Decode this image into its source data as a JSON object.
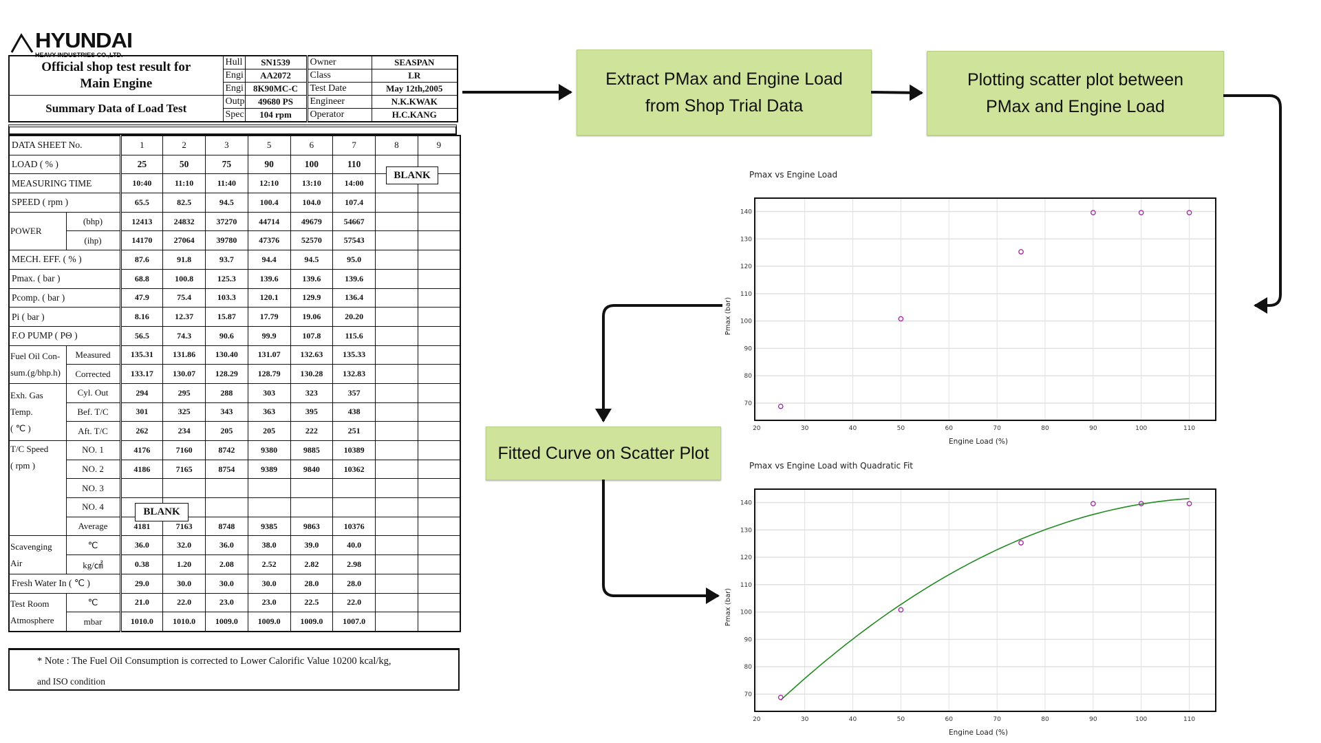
{
  "logo": {
    "brand": "HYUNDAI",
    "sub": "HEAVY INDUSTRIES CO.,LTD."
  },
  "header": {
    "title_line1": "Official shop test result for",
    "title_line2": "Main Engine",
    "subtitle": "Summary Data of Load Test",
    "info": [
      [
        "Hull",
        "SN1539",
        "Owner",
        "SEASPAN"
      ],
      [
        "Engi",
        "AA2072",
        "Class",
        "LR"
      ],
      [
        "Engi",
        "8K90MC-C",
        "Test Date",
        "May 12th,2005"
      ],
      [
        "Outp",
        "49680 PS",
        "Engineer",
        "N.K.KWAK"
      ],
      [
        "Spec",
        "104 rpm",
        "Operator",
        "H.C.KANG"
      ]
    ]
  },
  "table": {
    "sheet_label": "DATA  SHEET No.",
    "sheet_nos": [
      "1",
      "2",
      "3",
      "5",
      "6",
      "7",
      "8",
      "9"
    ],
    "blank": "BLANK",
    "rows": [
      {
        "label": "LOAD ( % )",
        "values": [
          "25",
          "50",
          "75",
          "90",
          "100",
          "110"
        ]
      },
      {
        "label": "MEASURING TIME",
        "values": [
          "10:40",
          "11:10",
          "11:40",
          "12:10",
          "13:10",
          "14:00"
        ]
      },
      {
        "label": "SPEED ( rpm )",
        "values": [
          "65.5",
          "82.5",
          "94.5",
          "100.4",
          "104.0",
          "107.4"
        ]
      },
      {
        "group": "POWER",
        "span": 2,
        "sub": "(bhp)",
        "values": [
          "12413",
          "24832",
          "37270",
          "44714",
          "49679",
          "54667"
        ]
      },
      {
        "sub": "(ihp)",
        "values": [
          "14170",
          "27064",
          "39780",
          "47376",
          "52570",
          "57543"
        ]
      },
      {
        "label": "MECH. EFF. ( % )",
        "values": [
          "87.6",
          "91.8",
          "93.7",
          "94.4",
          "94.5",
          "95.0"
        ]
      },
      {
        "label": "Pmax. ( bar )",
        "values": [
          "68.8",
          "100.8",
          "125.3",
          "139.6",
          "139.6",
          "139.6"
        ]
      },
      {
        "label": "Pcomp. ( bar )",
        "values": [
          "47.9",
          "75.4",
          "103.3",
          "120.1",
          "129.9",
          "136.4"
        ]
      },
      {
        "label": "Pi ( bar )",
        "values": [
          "8.16",
          "12.37",
          "15.87",
          "17.79",
          "19.06",
          "20.20"
        ]
      },
      {
        "label": "F.O PUMP ( PΘ )",
        "values": [
          "56.5",
          "74.3",
          "90.6",
          "99.9",
          "107.8",
          "115.6"
        ]
      },
      {
        "group": "Fuel Oil Con-\nsum.(g/bhp.h)",
        "span": 2,
        "sub": "Measured",
        "values": [
          "135.31",
          "131.86",
          "130.40",
          "131.07",
          "132.63",
          "135.33"
        ]
      },
      {
        "sub": "Corrected",
        "values": [
          "133.17",
          "130.07",
          "128.29",
          "128.79",
          "130.28",
          "132.83"
        ]
      },
      {
        "group": "Exh. Gas\nTemp.\n( ℃ )",
        "span": 3,
        "sub": "Cyl. Out",
        "values": [
          "294",
          "295",
          "288",
          "303",
          "323",
          "357"
        ]
      },
      {
        "sub": "Bef. T/C",
        "values": [
          "301",
          "325",
          "343",
          "363",
          "395",
          "438"
        ]
      },
      {
        "sub": "Aft. T/C",
        "values": [
          "262",
          "234",
          "205",
          "205",
          "222",
          "251"
        ]
      },
      {
        "group": "T/C Speed\n( rpm )",
        "span": 5,
        "sub": "NO. 1",
        "values": [
          "4176",
          "7160",
          "8742",
          "9380",
          "9885",
          "10389"
        ]
      },
      {
        "sub": "NO. 2",
        "values": [
          "4186",
          "7165",
          "8754",
          "9389",
          "9840",
          "10362"
        ]
      },
      {
        "sub": "NO. 3",
        "values": [
          "",
          "",
          "",
          "",
          "",
          ""
        ]
      },
      {
        "sub": "NO. 4",
        "values": [
          "",
          "",
          "",
          "",
          "",
          ""
        ]
      },
      {
        "sub": "Average",
        "values": [
          "4181",
          "7163",
          "8748",
          "9385",
          "9863",
          "10376"
        ]
      },
      {
        "group": "Scavenging\nAir",
        "span": 2,
        "sub": "℃",
        "values": [
          "36.0",
          "32.0",
          "36.0",
          "38.0",
          "39.0",
          "40.0"
        ]
      },
      {
        "sub": "kg/㎠",
        "values": [
          "0.38",
          "1.20",
          "2.08",
          "2.52",
          "2.82",
          "2.98"
        ]
      },
      {
        "label": "Fresh Water In ( ℃ )",
        "values": [
          "29.0",
          "30.0",
          "30.0",
          "30.0",
          "28.0",
          "28.0"
        ]
      },
      {
        "group": "Test Room\nAtmosphere",
        "span": 2,
        "sub": "℃",
        "values": [
          "21.0",
          "22.0",
          "23.0",
          "23.0",
          "22.5",
          "22.0"
        ]
      },
      {
        "sub": "mbar",
        "values": [
          "1010.0",
          "1010.0",
          "1009.0",
          "1009.0",
          "1009.0",
          "1007.0"
        ]
      }
    ],
    "note_line1": "* Note : The Fuel Oil Consumption is corrected to Lower Calorific Value 10200 kcal/kg,",
    "note_line2": "and ISO condition"
  },
  "flow": {
    "step1_line1": "Extract PMax and Engine Load",
    "step1_line2": "from Shop Trial Data",
    "step2_line1": "Plotting scatter plot between",
    "step2_line2": "PMax and Engine Load",
    "step3": "Fitted Curve on Scatter Plot"
  },
  "colors": {
    "box_fill": "#cfe39b",
    "marker": "#a020a0",
    "fit_line": "#228b22"
  },
  "chart_data": [
    {
      "type": "scatter",
      "title": "Pmax vs Engine Load",
      "xlabel": "Engine Load (%)",
      "ylabel": "Pmax (bar)",
      "x": [
        25,
        50,
        75,
        90,
        100,
        110
      ],
      "y": [
        68.8,
        100.8,
        125.3,
        139.6,
        139.6,
        139.6
      ],
      "xlim": [
        19.6,
        115.5
      ],
      "ylim": [
        63.7,
        144.9
      ],
      "xticks": [
        20,
        30,
        40,
        50,
        60,
        70,
        80,
        90,
        100,
        110
      ],
      "yticks": [
        70,
        80,
        90,
        100,
        110,
        120,
        130,
        140
      ],
      "grid": true,
      "marker": "open-circle"
    },
    {
      "type": "scatter",
      "title": "Pmax vs Engine Load with Quadratic Fit",
      "xlabel": "Engine Load (%)",
      "ylabel": "Pmax (bar)",
      "x": [
        25,
        50,
        75,
        90,
        100,
        110
      ],
      "y": [
        68.8,
        100.8,
        125.3,
        139.6,
        139.6,
        139.6
      ],
      "fit": "quadratic",
      "xlim": [
        19.6,
        115.5
      ],
      "ylim": [
        63.7,
        144.9
      ],
      "xticks": [
        20,
        30,
        40,
        50,
        60,
        70,
        80,
        90,
        100,
        110
      ],
      "yticks": [
        70,
        80,
        90,
        100,
        110,
        120,
        130,
        140
      ],
      "grid": true,
      "marker": "open-circle"
    }
  ]
}
